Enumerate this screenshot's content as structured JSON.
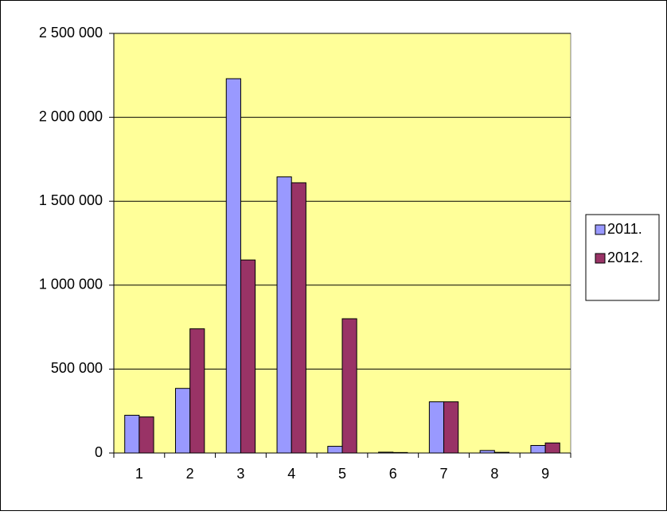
{
  "chart_data": {
    "type": "bar",
    "categories": [
      "1",
      "2",
      "3",
      "4",
      "5",
      "6",
      "7",
      "8",
      "9"
    ],
    "series": [
      {
        "name": "2011.",
        "color": "#9999ff",
        "values": [
          225000,
          385000,
          2230000,
          1645000,
          40000,
          5000,
          305000,
          15000,
          45000
        ]
      },
      {
        "name": "2012.",
        "color": "#993366",
        "values": [
          215000,
          740000,
          1150000,
          1610000,
          800000,
          3000,
          305000,
          4000,
          60000
        ]
      }
    ],
    "ylim": [
      0,
      2500000
    ],
    "yticks": [
      0,
      {
        "value": 500000,
        "label": "500 000"
      },
      {
        "value": 1000000,
        "label": "1 000 000"
      },
      {
        "value": 1500000,
        "label": "1 500 000"
      },
      {
        "value": 2000000,
        "label": "2 000 000"
      },
      {
        "value": 2500000,
        "label": "2 500 000"
      }
    ],
    "grid": true,
    "plot_background": "#ffff99",
    "legend": "right"
  }
}
